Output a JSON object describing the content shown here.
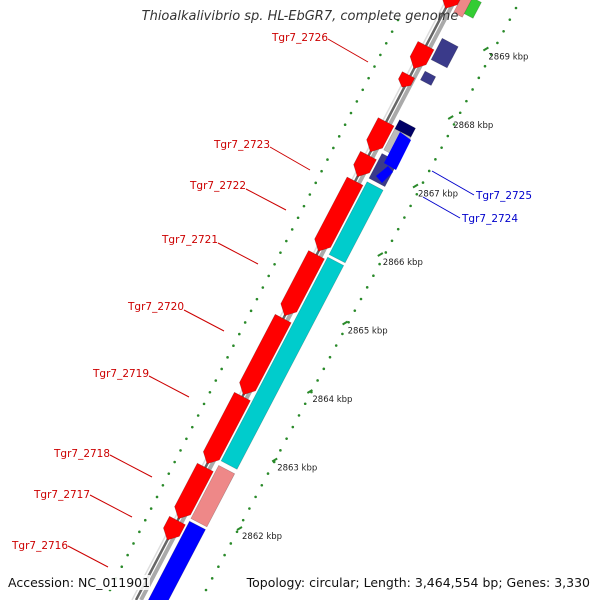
{
  "title": "Thioalkalivibrio sp. HL-EbGR7, complete genome",
  "footer": {
    "accession": "Accession: NC_011901",
    "stats": "Topology: circular; Length: 3,464,554 bp; Genes: 3,330"
  },
  "scale": {
    "ticks": [
      {
        "label": "2862 kbp",
        "kbp": 2862
      },
      {
        "label": "2863 kbp",
        "kbp": 2863
      },
      {
        "label": "2864 kbp",
        "kbp": 2864
      },
      {
        "label": "2865 kbp",
        "kbp": 2865
      },
      {
        "label": "2866 kbp",
        "kbp": 2866
      },
      {
        "label": "2867 kbp",
        "kbp": 2867
      },
      {
        "label": "2868 kbp",
        "kbp": 2868
      },
      {
        "label": "2869 kbp",
        "kbp": 2869
      }
    ]
  },
  "colors": {
    "label_forward": "#cc0000",
    "label_reverse": "#0000cc",
    "cds": "#ff0000",
    "cds_reverse": "#0000ff",
    "gene_slate": "#3a3a8a",
    "gene_cyan": "#00cccc",
    "gene_pink": "#ee8888",
    "gene_gray": "#bbbbbb",
    "gene_navy": "#000066",
    "gene_green": "#33cc33",
    "backbone": "#888888"
  },
  "genes": [
    {
      "id": "Tgr7_2716",
      "strand": "forward"
    },
    {
      "id": "Tgr7_2717",
      "strand": "forward"
    },
    {
      "id": "Tgr7_2718",
      "strand": "forward"
    },
    {
      "id": "Tgr7_2719",
      "strand": "forward"
    },
    {
      "id": "Tgr7_2720",
      "strand": "forward"
    },
    {
      "id": "Tgr7_2721",
      "strand": "forward"
    },
    {
      "id": "Tgr7_2722",
      "strand": "forward"
    },
    {
      "id": "Tgr7_2723",
      "strand": "forward"
    },
    {
      "id": "Tgr7_2726",
      "strand": "forward"
    },
    {
      "id": "Tgr7_2725",
      "strand": "reverse"
    },
    {
      "id": "Tgr7_2724",
      "strand": "reverse"
    }
  ]
}
